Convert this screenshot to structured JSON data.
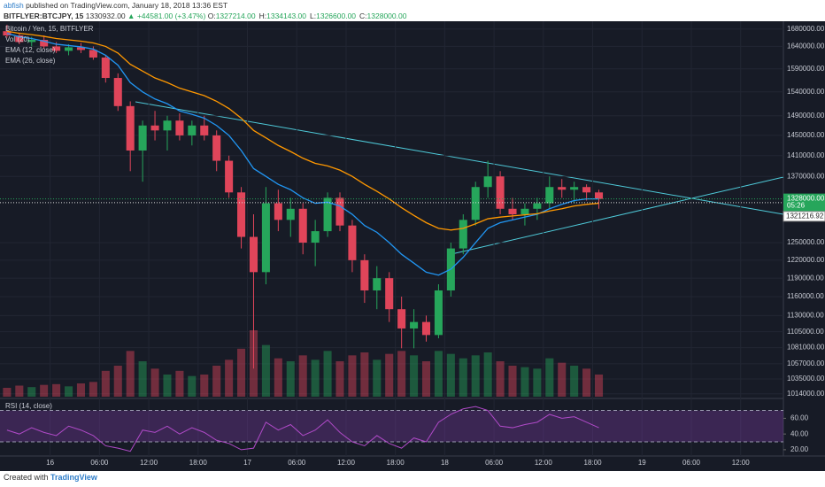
{
  "header": {
    "author": "abfish",
    "published": "published on TradingView.com, January 18, 2018 13:36 EST",
    "symbol": "BITFLYER:BTCJPY, 15",
    "price": "1330932.00",
    "change": "▲ +44581.00 (+3.47%)",
    "ohlc": [
      {
        "label": "O:",
        "value": "1327214.00"
      },
      {
        "label": "H:",
        "value": "1334143.00"
      },
      {
        "label": "L:",
        "value": "1326600.00"
      },
      {
        "label": "C:",
        "value": "1328000.00"
      }
    ]
  },
  "footer": {
    "created": "Created with",
    "brand": "TradingView"
  },
  "chart_data": {
    "type": "candlestick",
    "title": "Bitcoin / Yen, 15, BITFLYER",
    "log_scale": true,
    "grid": true,
    "up_color": "#26a65b",
    "down_color": "#e0455a",
    "x": [
      -5.25,
      -3.75,
      -2.25,
      -0.75,
      0.75,
      2.25,
      3.75,
      5.25,
      6.75,
      8.25,
      9.75,
      11.25,
      12.75,
      14.25,
      15.75,
      17.25,
      18.75,
      20.25,
      21.75,
      23.25,
      24.75,
      26.25,
      27.75,
      29.25,
      30.75,
      32.25,
      33.75,
      35.25,
      36.75,
      38.25,
      39.75,
      41.25,
      42.75,
      44.25,
      45.75,
      47.25,
      48.75,
      50.25,
      51.75,
      53.25,
      54.75,
      56.25,
      57.75,
      59.25,
      60.75,
      62.25,
      63.75,
      65.25,
      66.75
    ],
    "open": [
      1675000,
      1665000,
      1650000,
      1655000,
      1640000,
      1630000,
      1638000,
      1632000,
      1615000,
      1570000,
      1510000,
      1420000,
      1470000,
      1460000,
      1480000,
      1450000,
      1470000,
      1450000,
      1400000,
      1340000,
      1260000,
      1200000,
      1320000,
      1290000,
      1310000,
      1250000,
      1270000,
      1330000,
      1280000,
      1220000,
      1170000,
      1190000,
      1140000,
      1110000,
      1120000,
      1100000,
      1170000,
      1240000,
      1290000,
      1350000,
      1370000,
      1310000,
      1300000,
      1310000,
      1320000,
      1350000,
      1345000,
      1350000,
      1340000
    ],
    "high": [
      1690000,
      1672000,
      1662000,
      1665000,
      1650000,
      1645000,
      1648000,
      1640000,
      1620000,
      1580000,
      1520000,
      1480000,
      1500000,
      1490000,
      1495000,
      1480000,
      1490000,
      1460000,
      1410000,
      1350000,
      1300000,
      1350000,
      1345000,
      1330000,
      1320000,
      1290000,
      1340000,
      1340000,
      1290000,
      1230000,
      1210000,
      1200000,
      1160000,
      1140000,
      1130000,
      1180000,
      1250000,
      1300000,
      1360000,
      1400000,
      1380000,
      1330000,
      1320000,
      1330000,
      1370000,
      1365000,
      1360000,
      1355000,
      1345000
    ],
    "low": [
      1660000,
      1645000,
      1640000,
      1635000,
      1625000,
      1620000,
      1625000,
      1610000,
      1560000,
      1500000,
      1380000,
      1360000,
      1440000,
      1420000,
      1440000,
      1430000,
      1440000,
      1380000,
      1330000,
      1240000,
      1050000,
      1180000,
      1270000,
      1260000,
      1230000,
      1210000,
      1260000,
      1270000,
      1200000,
      1150000,
      1140000,
      1120000,
      1080000,
      1080000,
      1090000,
      1095000,
      1160000,
      1230000,
      1280000,
      1330000,
      1300000,
      1290000,
      1280000,
      1290000,
      1310000,
      1330000,
      1320000,
      1325000,
      1310000
    ],
    "close": [
      1665000,
      1650000,
      1655000,
      1640000,
      1630000,
      1638000,
      1632000,
      1615000,
      1570000,
      1510000,
      1420000,
      1470000,
      1460000,
      1480000,
      1450000,
      1470000,
      1450000,
      1400000,
      1340000,
      1260000,
      1200000,
      1320000,
      1290000,
      1310000,
      1250000,
      1270000,
      1330000,
      1280000,
      1220000,
      1170000,
      1190000,
      1140000,
      1110000,
      1120000,
      1100000,
      1170000,
      1240000,
      1290000,
      1350000,
      1370000,
      1310000,
      1300000,
      1310000,
      1320000,
      1350000,
      1345000,
      1350000,
      1340000,
      1328000
    ],
    "volume_name": "Vol (20)",
    "volume": [
      120,
      150,
      130,
      160,
      170,
      140,
      180,
      200,
      350,
      420,
      620,
      480,
      380,
      300,
      350,
      280,
      300,
      420,
      500,
      650,
      900,
      700,
      520,
      480,
      560,
      500,
      620,
      480,
      560,
      600,
      500,
      580,
      620,
      560,
      480,
      620,
      580,
      520,
      560,
      600,
      480,
      420,
      400,
      380,
      520,
      460,
      420,
      380,
      300
    ],
    "series": [
      {
        "name": "EMA (12, close)",
        "color": "#2196f3",
        "values": [
          1670000,
          1662000,
          1658000,
          1652000,
          1645000,
          1642000,
          1639000,
          1634000,
          1620000,
          1598000,
          1560000,
          1540000,
          1525000,
          1515000,
          1500000,
          1493000,
          1485000,
          1470000,
          1450000,
          1420000,
          1385000,
          1370000,
          1355000,
          1345000,
          1330000,
          1320000,
          1322000,
          1315000,
          1300000,
          1280000,
          1268000,
          1250000,
          1230000,
          1215000,
          1200000,
          1195000,
          1205000,
          1225000,
          1250000,
          1275000,
          1285000,
          1290000,
          1295000,
          1300000,
          1310000,
          1318000,
          1325000,
          1328000,
          1328000
        ]
      },
      {
        "name": "EMA (26, close)",
        "color": "#ff9800",
        "values": [
          1675000,
          1670000,
          1667000,
          1663000,
          1658000,
          1655000,
          1652000,
          1648000,
          1640000,
          1625000,
          1600000,
          1585000,
          1570000,
          1560000,
          1548000,
          1540000,
          1532000,
          1520000,
          1505000,
          1485000,
          1460000,
          1445000,
          1430000,
          1418000,
          1405000,
          1395000,
          1390000,
          1382000,
          1370000,
          1355000,
          1342000,
          1328000,
          1312000,
          1298000,
          1285000,
          1275000,
          1272000,
          1275000,
          1283000,
          1292000,
          1295000,
          1297000,
          1299000,
          1301000,
          1306000,
          1310000,
          1315000,
          1318000,
          1320000
        ]
      }
    ],
    "ylim": [
      1010000,
      1694000
    ],
    "yticks": [
      {
        "value": 1680000,
        "label": "1680000.00"
      },
      {
        "value": 1640000,
        "label": "1640000.00"
      },
      {
        "value": 1590000,
        "label": "1590000.00"
      },
      {
        "value": 1540000,
        "label": "1540000.00"
      },
      {
        "value": 1490000,
        "label": "1490000.00"
      },
      {
        "value": 1450000,
        "label": "1450000.00"
      },
      {
        "value": 1410000,
        "label": "1410000.00"
      },
      {
        "value": 1370000,
        "label": "1370000.00"
      },
      {
        "value": 1250000,
        "label": "1250000.00"
      },
      {
        "value": 1220000,
        "label": "1220000.00"
      },
      {
        "value": 1190000,
        "label": "1190000.00"
      },
      {
        "value": 1160000,
        "label": "1160000.00"
      },
      {
        "value": 1130000,
        "label": "1130000.00"
      },
      {
        "value": 1105000,
        "label": "1105000.00"
      },
      {
        "value": 1081000,
        "label": "1081000.00"
      },
      {
        "value": 1057000,
        "label": "1057000.00"
      },
      {
        "value": 1035000,
        "label": "1035000.00"
      },
      {
        "value": 1014000,
        "label": "1014000.00"
      }
    ],
    "xlim": [
      -6.1,
      89.2
    ],
    "xticks": [
      {
        "value": 0,
        "label": "16"
      },
      {
        "value": 6,
        "label": "06:00"
      },
      {
        "value": 12,
        "label": "12:00"
      },
      {
        "value": 18,
        "label": "18:00"
      },
      {
        "value": 24,
        "label": "17"
      },
      {
        "value": 30,
        "label": "06:00"
      },
      {
        "value": 36,
        "label": "12:00"
      },
      {
        "value": 42,
        "label": "18:00"
      },
      {
        "value": 48,
        "label": "18"
      },
      {
        "value": 54,
        "label": "06:00"
      },
      {
        "value": 60,
        "label": "12:00"
      },
      {
        "value": 66,
        "label": "18:00"
      },
      {
        "value": 72,
        "label": "19"
      },
      {
        "value": 78,
        "label": "06:00"
      },
      {
        "value": 84,
        "label": "12:00"
      }
    ],
    "last_price": {
      "value": 1328000,
      "label": "1328000.00"
    },
    "countdown": "05:26",
    "trend_price": {
      "value": 1321216.92,
      "label": "1321216.92"
    },
    "rsi": {
      "name": "RSI (14, close)",
      "color": "#b04ac8",
      "bands": [
        30,
        70
      ],
      "ylim": [
        12,
        83
      ],
      "yticks": [
        {
          "value": 20,
          "label": "20.00"
        },
        {
          "value": 40,
          "label": "40.00"
        },
        {
          "value": 60,
          "label": "60.00"
        }
      ],
      "values": [
        45,
        40,
        48,
        42,
        38,
        50,
        45,
        38,
        25,
        22,
        18,
        45,
        42,
        50,
        40,
        48,
        42,
        32,
        28,
        20,
        22,
        55,
        45,
        52,
        38,
        45,
        58,
        42,
        30,
        25,
        38,
        28,
        22,
        35,
        30,
        55,
        65,
        72,
        75,
        70,
        50,
        48,
        52,
        55,
        65,
        60,
        62,
        55,
        48
      ]
    }
  }
}
